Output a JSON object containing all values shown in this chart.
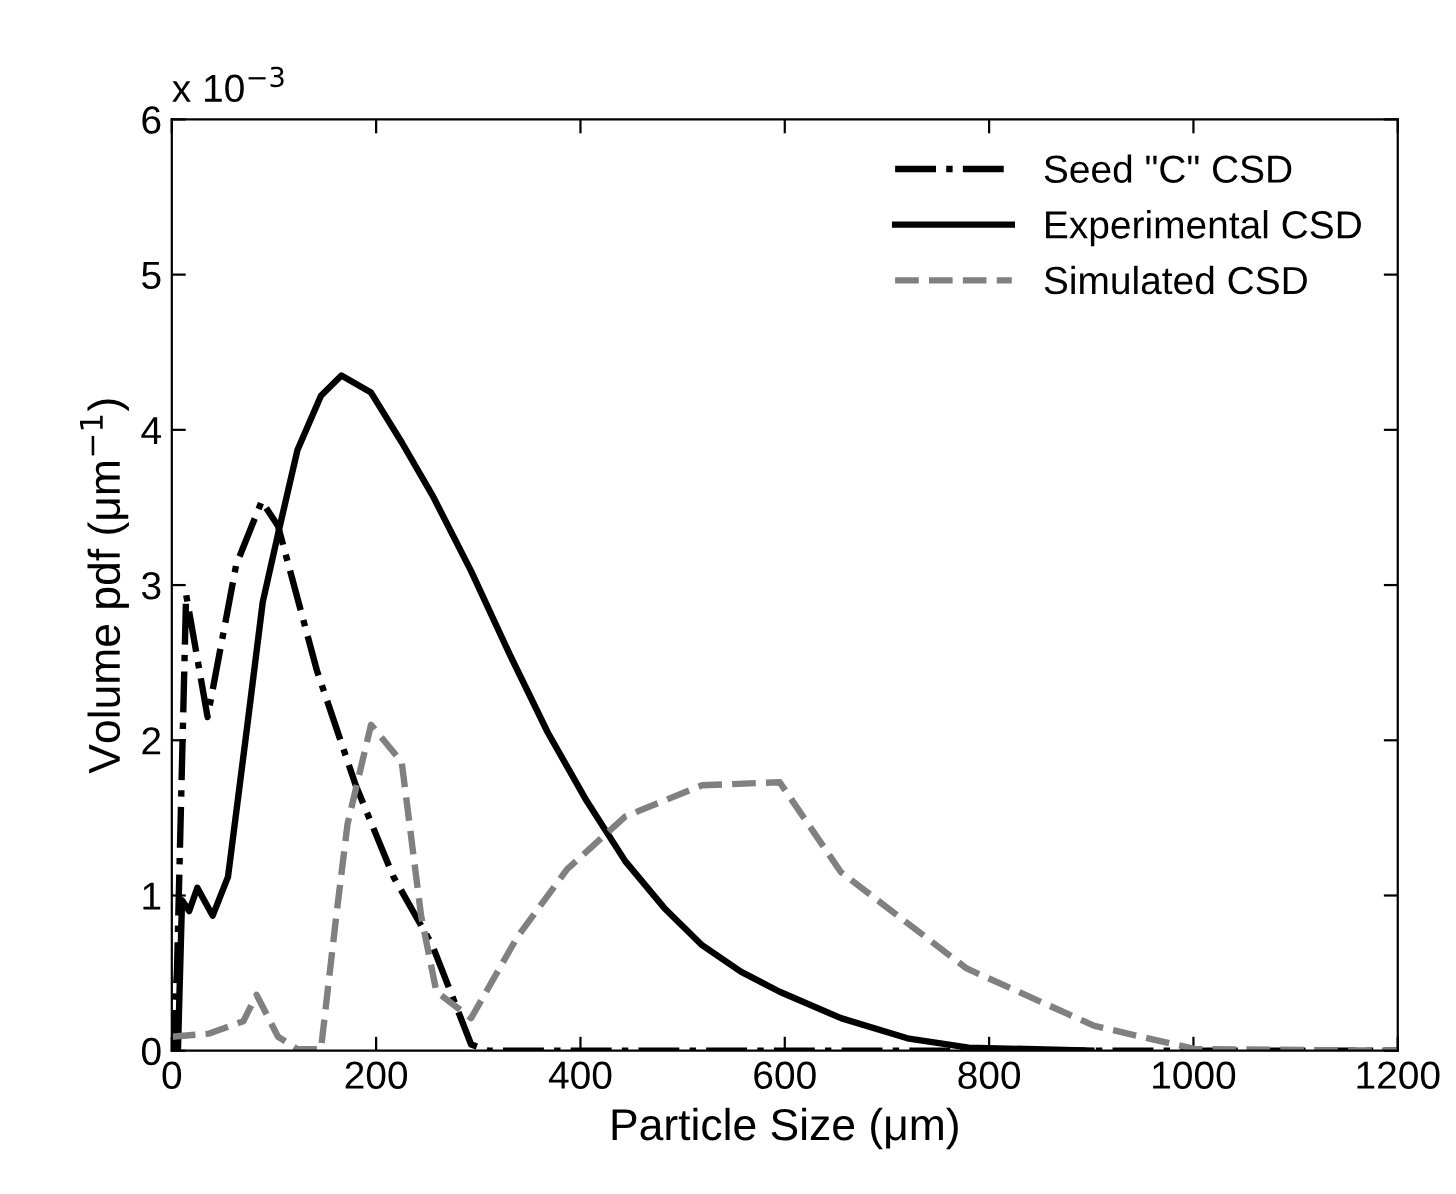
{
  "chart_data": {
    "type": "line",
    "xlabel": "Particle Size (μm)",
    "ylabel": "Volume pdf (μm$^{−1}$)",
    "annotations": [
      "x 10$^{−3}$"
    ],
    "xlim": [
      0,
      1200
    ],
    "xticks": [
      0,
      200,
      400,
      600,
      800,
      1000,
      1200
    ],
    "ylim": [
      0,
      6
    ],
    "yticks": [
      0,
      1,
      2,
      3,
      4,
      5,
      6
    ],
    "grid": false,
    "legend": "top right",
    "series": [
      {
        "name": "Seed \"C\" CSD",
        "color": "#000000",
        "line_style": "dashdot",
        "x": [
          0,
          5,
          14,
          35,
          63,
          88,
          104,
          142,
          180,
          217,
          255,
          293,
          310,
          600,
          1200
        ],
        "values": [
          0,
          0.5,
          2.94,
          2.15,
          3.13,
          3.54,
          3.38,
          2.45,
          1.71,
          1.12,
          0.68,
          0.04,
          0,
          0,
          0
        ]
      },
      {
        "name": "Experimental CSD",
        "color": "#000000",
        "line_style": "solid",
        "x": [
          0,
          6,
          10,
          17,
          25,
          40,
          55,
          74,
          89,
          104,
          123,
          146,
          166,
          195,
          225,
          255,
          293,
          331,
          368,
          406,
          444,
          482,
          519,
          557,
          595,
          655,
          720,
          780,
          900
        ],
        "values": [
          0,
          0,
          0.97,
          0.9,
          1.05,
          0.87,
          1.12,
          2.1,
          2.89,
          3.33,
          3.87,
          4.22,
          4.35,
          4.24,
          3.92,
          3.58,
          3.09,
          2.55,
          2.05,
          1.61,
          1.22,
          0.92,
          0.68,
          0.51,
          0.38,
          0.21,
          0.08,
          0.02,
          0
        ]
      },
      {
        "name": "Simulated CSD",
        "color": "#808080",
        "line_style": "dashed",
        "x": [
          0,
          36,
          70,
          83,
          104,
          123,
          146,
          161,
          172,
          195,
          225,
          244,
          259,
          293,
          338,
          387,
          444,
          519,
          595,
          655,
          778,
          903,
          1002,
          1200
        ],
        "values": [
          0.09,
          0.11,
          0.19,
          0.36,
          0.09,
          0.01,
          0.01,
          0.87,
          1.46,
          2.1,
          1.86,
          0.87,
          0.38,
          0.21,
          0.73,
          1.17,
          1.51,
          1.71,
          1.73,
          1.15,
          0.53,
          0.16,
          0.01,
          0
        ]
      }
    ]
  }
}
